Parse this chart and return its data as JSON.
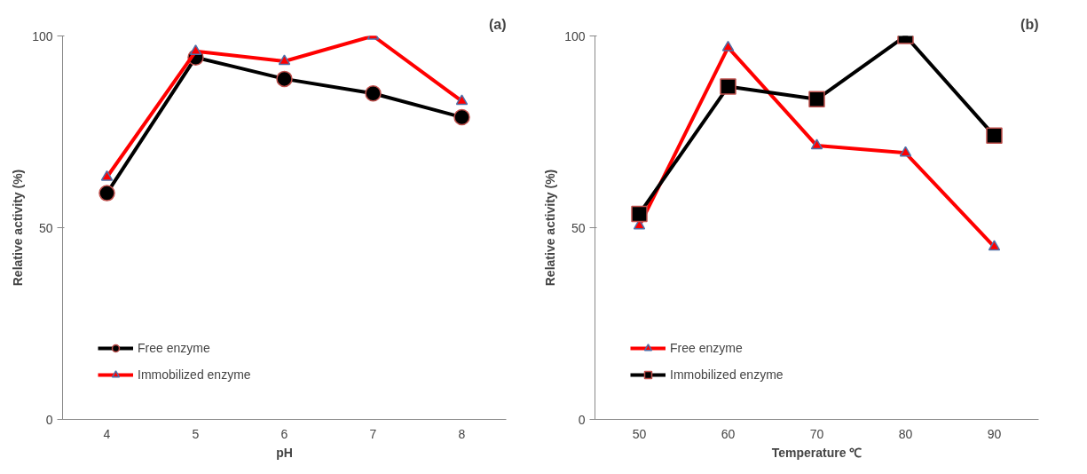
{
  "chart_data": [
    {
      "type": "line",
      "title": "(a)",
      "xlabel": "pH",
      "ylabel": "Relative activity (%)",
      "categories": [
        "4",
        "5",
        "6",
        "7",
        "8"
      ],
      "ylim": [
        0,
        100
      ],
      "yticks": [
        0,
        50,
        100
      ],
      "grid": false,
      "legend": "bottom left",
      "series": [
        {
          "name": "Free enzyme",
          "color": "#000000",
          "marker": "circle",
          "values": [
            59,
            94.4,
            88.8,
            85,
            78.8
          ]
        },
        {
          "name": "Immobilized enzyme",
          "color": "#ff0000",
          "marker": "triangle",
          "values": [
            63.2,
            96,
            93.4,
            100,
            83
          ]
        }
      ]
    },
    {
      "type": "line",
      "title": "(b)",
      "xlabel": "Temperature ℃",
      "ylabel": "Relative activity (%)",
      "categories": [
        "50",
        "60",
        "70",
        "80",
        "90"
      ],
      "ylim": [
        0,
        100
      ],
      "yticks": [
        0,
        50,
        100
      ],
      "grid": false,
      "legend": "bottom left",
      "series": [
        {
          "name": "Free enzyme",
          "color": "#ff0000",
          "marker": "triangle",
          "values": [
            50.5,
            97,
            71.4,
            69.5,
            45
          ]
        },
        {
          "name": "Immobilized enzyme",
          "color": "#000000",
          "marker": "square",
          "values": [
            53.6,
            86.8,
            83.5,
            100,
            74
          ]
        }
      ]
    }
  ]
}
